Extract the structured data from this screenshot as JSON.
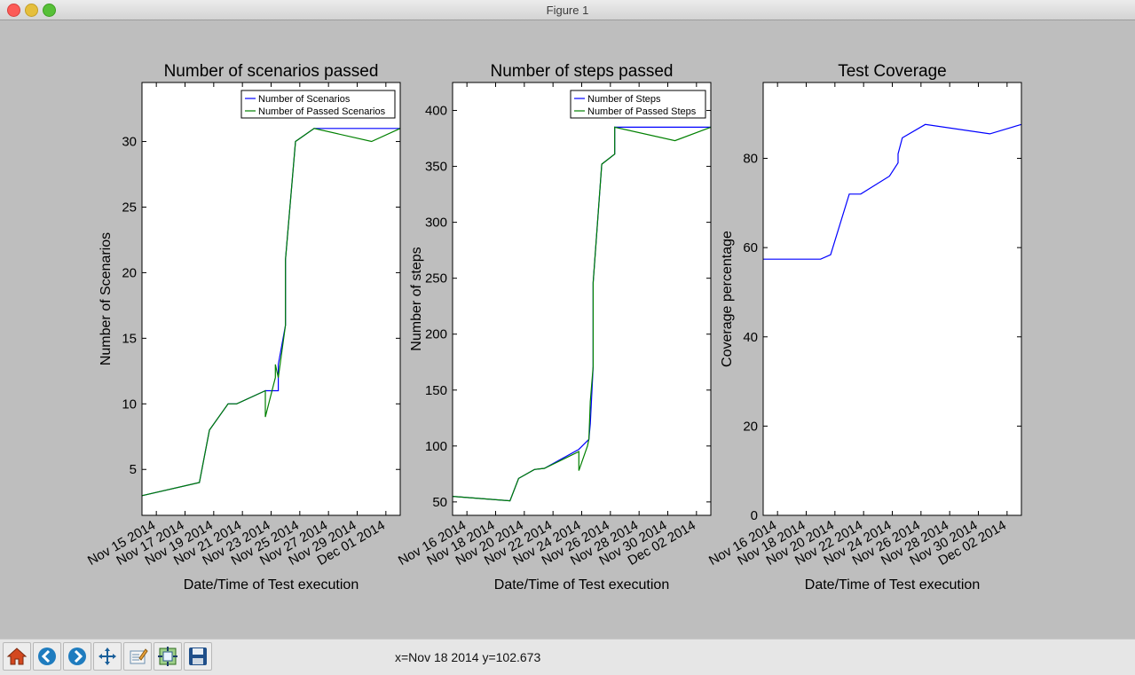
{
  "window": {
    "title": "Figure 1"
  },
  "status": {
    "coords": "x=Nov 18 2014 y=102.673"
  },
  "toolbar": {
    "buttons": [
      {
        "name": "home-button",
        "icon": "home-icon"
      },
      {
        "name": "back-button",
        "icon": "back-arrow-icon"
      },
      {
        "name": "forward-button",
        "icon": "forward-arrow-icon"
      },
      {
        "name": "pan-button",
        "icon": "pan-icon"
      },
      {
        "name": "zoom-button",
        "icon": "zoom-rect-icon"
      },
      {
        "name": "subplots-button",
        "icon": "subplots-icon"
      },
      {
        "name": "save-button",
        "icon": "save-icon"
      }
    ]
  },
  "colors": {
    "blue": "#0000ff",
    "green": "#008000"
  },
  "chart_data": [
    {
      "type": "line",
      "title": "Number of scenarios passed",
      "xlabel": "Date/Time of Test execution",
      "ylabel": "Number of Scenarios",
      "x_range": [
        "2014-11-14",
        "2014-12-02"
      ],
      "ylim": [
        1.5,
        34.5
      ],
      "y_ticks": [
        5,
        10,
        15,
        20,
        25,
        30
      ],
      "x_ticks": [
        "Nov 15 2014",
        "Nov 17 2014",
        "Nov 19 2014",
        "Nov 21 2014",
        "Nov 23 2014",
        "Nov 25 2014",
        "Nov 27 2014",
        "Nov 29 2014",
        "Dec 01 2014"
      ],
      "x_tick_dates": [
        "2014-11-15",
        "2014-11-17",
        "2014-11-19",
        "2014-11-21",
        "2014-11-23",
        "2014-11-25",
        "2014-11-27",
        "2014-11-29",
        "2014-12-01"
      ],
      "legend": "top-right",
      "series": [
        {
          "name": "Number of Scenarios",
          "color": "#0000ff",
          "points": [
            [
              "2014-11-14",
              3
            ],
            [
              "2014-11-18",
              4
            ],
            [
              "2014-11-18.7",
              8
            ],
            [
              "2014-11-20",
              10
            ],
            [
              "2014-11-20.6",
              10
            ],
            [
              "2014-11-22.6",
              11
            ],
            [
              "2014-11-23.5",
              11
            ],
            [
              "2014-11-23.5",
              13
            ],
            [
              "2014-11-24",
              16
            ],
            [
              "2014-11-24",
              21
            ],
            [
              "2014-11-24.7",
              30
            ],
            [
              "2014-11-26",
              31
            ],
            [
              "2014-12-02",
              31
            ]
          ]
        },
        {
          "name": "Number of Passed Scenarios",
          "color": "#008000",
          "points": [
            [
              "2014-11-14",
              3
            ],
            [
              "2014-11-18",
              4
            ],
            [
              "2014-11-18.7",
              8
            ],
            [
              "2014-11-20",
              10
            ],
            [
              "2014-11-20.6",
              10
            ],
            [
              "2014-11-22.6",
              11
            ],
            [
              "2014-11-22.6",
              9
            ],
            [
              "2014-11-23.3",
              12
            ],
            [
              "2014-11-23.3",
              13
            ],
            [
              "2014-11-23.5",
              12
            ],
            [
              "2014-11-24",
              16
            ],
            [
              "2014-11-24",
              21
            ],
            [
              "2014-11-24.7",
              30
            ],
            [
              "2014-11-26",
              31
            ],
            [
              "2014-11-30",
              30
            ],
            [
              "2014-12-02",
              31
            ]
          ]
        }
      ]
    },
    {
      "type": "line",
      "title": "Number of steps passed",
      "xlabel": "Date/Time of Test execution",
      "ylabel": "Number of steps",
      "x_range": [
        "2014-11-15",
        "2014-12-03"
      ],
      "ylim": [
        38,
        425
      ],
      "y_ticks": [
        50,
        100,
        150,
        200,
        250,
        300,
        350,
        400
      ],
      "x_ticks": [
        "Nov 16 2014",
        "Nov 18 2014",
        "Nov 20 2014",
        "Nov 22 2014",
        "Nov 24 2014",
        "Nov 26 2014",
        "Nov 28 2014",
        "Nov 30 2014",
        "Dec 02 2014"
      ],
      "x_tick_dates": [
        "2014-11-16",
        "2014-11-18",
        "2014-11-20",
        "2014-11-22",
        "2014-11-24",
        "2014-11-26",
        "2014-11-28",
        "2014-11-30",
        "2014-12-02"
      ],
      "legend": "top-right",
      "series": [
        {
          "name": "Number of Steps",
          "color": "#0000ff",
          "points": [
            [
              "2014-11-15",
              55
            ],
            [
              "2014-11-19",
              51
            ],
            [
              "2014-11-19.6",
              71
            ],
            [
              "2014-11-20.7",
              79
            ],
            [
              "2014-11-21.4",
              80
            ],
            [
              "2014-11-23.8",
              97
            ],
            [
              "2014-11-24.5",
              106
            ],
            [
              "2014-11-24.6",
              120
            ],
            [
              "2014-11-24.8",
              171
            ],
            [
              "2014-11-24.8",
              246
            ],
            [
              "2014-11-25.4",
              352
            ],
            [
              "2014-11-26.3",
              361
            ],
            [
              "2014-11-26.3",
              385
            ],
            [
              "2014-12-03",
              385
            ]
          ]
        },
        {
          "name": "Number of Passed Steps",
          "color": "#008000",
          "points": [
            [
              "2014-11-15",
              55
            ],
            [
              "2014-11-19",
              51
            ],
            [
              "2014-11-19.6",
              71
            ],
            [
              "2014-11-20.7",
              79
            ],
            [
              "2014-11-21.4",
              80
            ],
            [
              "2014-11-23.8",
              95
            ],
            [
              "2014-11-23.8",
              78
            ],
            [
              "2014-11-24.4",
              100
            ],
            [
              "2014-11-24.5",
              106
            ],
            [
              "2014-11-24.6",
              140
            ],
            [
              "2014-11-24.8",
              171
            ],
            [
              "2014-11-24.8",
              246
            ],
            [
              "2014-11-25.4",
              352
            ],
            [
              "2014-11-26.3",
              361
            ],
            [
              "2014-11-26.3",
              385
            ],
            [
              "2014-11-30.5",
              373
            ],
            [
              "2014-12-03",
              385
            ]
          ]
        }
      ]
    },
    {
      "type": "line",
      "title": "Test Coverage",
      "xlabel": "Date/Time of Test execution",
      "ylabel": "Coverage percentage",
      "x_range": [
        "2014-11-15",
        "2014-12-03"
      ],
      "ylim": [
        0,
        97
      ],
      "y_ticks": [
        0,
        20,
        40,
        60,
        80
      ],
      "x_ticks": [
        "Nov 16 2014",
        "Nov 18 2014",
        "Nov 20 2014",
        "Nov 22 2014",
        "Nov 24 2014",
        "Nov 26 2014",
        "Nov 28 2014",
        "Nov 30 2014",
        "Dec 02 2014"
      ],
      "x_tick_dates": [
        "2014-11-16",
        "2014-11-18",
        "2014-11-20",
        "2014-11-22",
        "2014-11-24",
        "2014-11-26",
        "2014-11-28",
        "2014-11-30",
        "2014-12-02"
      ],
      "series": [
        {
          "color": "#0000ff",
          "points": [
            [
              "2014-11-15",
              57.4
            ],
            [
              "2014-11-19",
              57.4
            ],
            [
              "2014-11-19.7",
              58.4
            ],
            [
              "2014-11-21",
              72
            ],
            [
              "2014-11-21.8",
              72
            ],
            [
              "2014-11-23.8",
              76
            ],
            [
              "2014-11-24.4",
              79
            ],
            [
              "2014-11-24.4",
              81
            ],
            [
              "2014-11-24.7",
              84.6
            ],
            [
              "2014-11-26.3",
              87.6
            ],
            [
              "2014-11-30.8",
              85.5
            ],
            [
              "2014-12-03",
              87.6
            ]
          ]
        }
      ]
    }
  ]
}
